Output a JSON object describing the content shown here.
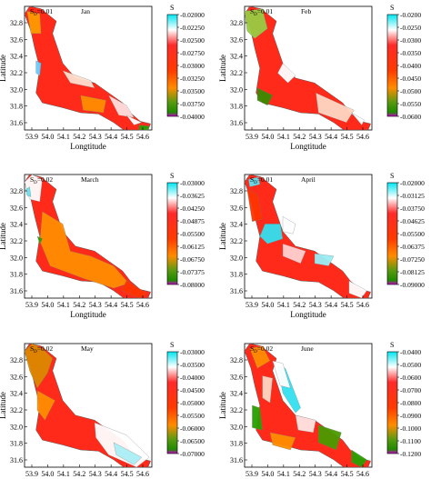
{
  "chart_data": [
    {
      "type": "heatmap",
      "sd_label": "S",
      "sd_sub": "D",
      "sd_value": "=0.01",
      "month": "Jan",
      "xlabel": "Longtitude",
      "ylabel": "Latitude",
      "x_ticks": [
        "53.9",
        "54.0",
        "54.1",
        "54.2",
        "54.3",
        "54.4",
        "54.5",
        "54.6"
      ],
      "y_ticks": [
        "32.8",
        "32.6",
        "32.4",
        "32.2",
        "32.0",
        "31.8",
        "31.6"
      ],
      "colorbar_title": "S",
      "colorbar_ticks": [
        "-0.02000",
        "-0.02250",
        "-0.02500",
        "-0.02750",
        "-0.03000",
        "-0.03250",
        "-0.03500",
        "-0.03750",
        "-0.04000"
      ]
    },
    {
      "type": "heatmap",
      "sd_label": "S",
      "sd_sub": "D",
      "sd_value": "=0.01",
      "month": "Feb",
      "xlabel": "Longtitude",
      "ylabel": "Latitude",
      "x_ticks": [
        "53.9",
        "54.0",
        "54.1",
        "54.2",
        "54.3",
        "54.4",
        "54.5",
        "54.6"
      ],
      "y_ticks": [
        "32.8",
        "32.6",
        "32.4",
        "32.2",
        "32.0",
        "31.8",
        "31.6"
      ],
      "colorbar_title": "S",
      "colorbar_ticks": [
        "-0.0200",
        "-0.0250",
        "-0.0300",
        "-0.0350",
        "-0.0400",
        "-0.0450",
        "-0.0500",
        "-0.0550",
        "-0.0600"
      ]
    },
    {
      "type": "heatmap",
      "sd_label": "S",
      "sd_sub": "D",
      "sd_value": "=0.02",
      "month": "March",
      "xlabel": "Longtitude",
      "ylabel": "Latitude",
      "x_ticks": [
        "53.9",
        "54.0",
        "54.1",
        "54.2",
        "54.3",
        "54.4",
        "54.5",
        "54.6"
      ],
      "y_ticks": [
        "32.8",
        "32.6",
        "32.4",
        "32.2",
        "32.0",
        "31.8",
        "31.6"
      ],
      "colorbar_title": "S",
      "colorbar_ticks": [
        "-0.03000",
        "-0.03625",
        "-0.04250",
        "-0.04875",
        "-0.05500",
        "-0.06125",
        "-0.06750",
        "-0.07375",
        "-0.08000"
      ]
    },
    {
      "type": "heatmap",
      "sd_label": "S",
      "sd_sub": "D",
      "sd_value": "=0.01",
      "month": "April",
      "xlabel": "Longtitude",
      "ylabel": "Latitude",
      "x_ticks": [
        "53.9",
        "54.0",
        "54.1",
        "54.2",
        "54.3",
        "54.4",
        "54.5",
        "54.6"
      ],
      "y_ticks": [
        "32.8",
        "32.6",
        "32.4",
        "32.2",
        "32.0",
        "31.8",
        "31.6"
      ],
      "colorbar_title": "S",
      "colorbar_ticks": [
        "-0.02000",
        "-0.03125",
        "-0.03750",
        "-0.04625",
        "-0.05500",
        "-0.06375",
        "-0.07250",
        "-0.08125",
        "-0.09000"
      ]
    },
    {
      "type": "heatmap",
      "sd_label": "S",
      "sd_sub": "D",
      "sd_value": "=0.02",
      "month": "May",
      "xlabel": "Longtitude",
      "ylabel": "Latitude",
      "x_ticks": [
        "53.9",
        "54.0",
        "54.1",
        "54.2",
        "54.3",
        "54.4",
        "54.5",
        "54.6"
      ],
      "y_ticks": [
        "32.8",
        "32.6",
        "32.4",
        "32.2",
        "32.0",
        "31.8",
        "31.6"
      ],
      "colorbar_title": "S",
      "colorbar_ticks": [
        "-0.03000",
        "-0.03500",
        "-0.04000",
        "-0.04500",
        "-0.05000",
        "-0.05500",
        "-0.06000",
        "-0.06500",
        "-0.07000"
      ]
    },
    {
      "type": "heatmap",
      "sd_label": "S",
      "sd_sub": "D",
      "sd_value": "=0.02",
      "month": "June",
      "xlabel": "Longtitude",
      "ylabel": "Latitude",
      "x_ticks": [
        "53.9",
        "54.0",
        "54.1",
        "54.2",
        "54.3",
        "54.4",
        "54.5",
        "54.6"
      ],
      "y_ticks": [
        "32.8",
        "32.6",
        "32.4",
        "32.2",
        "32.0",
        "31.8",
        "31.6"
      ],
      "colorbar_title": "S",
      "colorbar_ticks": [
        "-0.0400",
        "-0.0500",
        "-0.0600",
        "-0.0700",
        "-0.0800",
        "-0.0900",
        "-0.1000",
        "-0.1100",
        "-0.1200"
      ]
    }
  ],
  "colors": {
    "colormap": [
      "#00e5f0",
      "#ffffff",
      "#ff0000",
      "#ff8000",
      "#339900",
      "#cc00cc"
    ],
    "blank_land": "#ffffff"
  }
}
